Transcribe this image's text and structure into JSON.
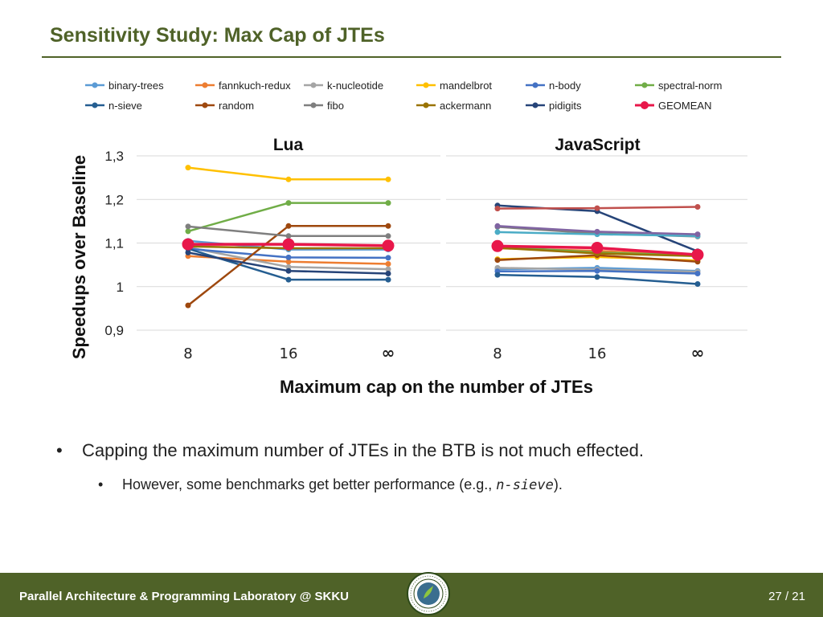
{
  "slide": {
    "title": "Sensitivity Study: Max Cap of JTEs",
    "bullet1": "Capping the maximum number of JTEs in the BTB is not much effected.",
    "bullet2_prefix": "However, some benchmarks get better performance (e.g., ",
    "bullet2_code": "n-sieve",
    "bullet2_suffix": ").",
    "footer": "Parallel Architecture & Programming Laboratory  @ SKKU",
    "page": "27 / 21"
  },
  "chart_data": {
    "type": "line",
    "ylabel": "Speedups  over Baseline",
    "xlabel": "Maximum cap on the number of JTEs",
    "ylim": [
      0.9,
      1.3
    ],
    "yticks": [
      "1,3",
      "1,2",
      "1,1",
      "1",
      "0,9"
    ],
    "ytick_values": [
      1.3,
      1.2,
      1.1,
      1.0,
      0.9
    ],
    "categories": [
      "8",
      "16",
      "∞"
    ],
    "grid": true,
    "legend_position": "top",
    "legend": [
      {
        "name": "binary-trees",
        "color": "#5b9bd5"
      },
      {
        "name": "fannkuch-redux",
        "color": "#ed7d31"
      },
      {
        "name": "k-nucleotide",
        "color": "#a5a5a5"
      },
      {
        "name": "mandelbrot",
        "color": "#ffc000"
      },
      {
        "name": "n-body",
        "color": "#4472c4"
      },
      {
        "name": "spectral-norm",
        "color": "#70ad47"
      },
      {
        "name": "n-sieve",
        "color": "#255e91"
      },
      {
        "name": "random",
        "color": "#9e480e"
      },
      {
        "name": "fibo",
        "color": "#7f7f7f"
      },
      {
        "name": "ackermann",
        "color": "#997300"
      },
      {
        "name": "pidigits",
        "color": "#264478"
      },
      {
        "name": "GEOMEAN",
        "color": "#e8174a"
      }
    ],
    "panels": [
      {
        "title": "Lua",
        "series": [
          {
            "name": "binary-trees",
            "color": "#5b9bd5",
            "values": [
              1.105,
              1.085,
              1.085
            ]
          },
          {
            "name": "fannkuch-redux",
            "color": "#ed7d31",
            "values": [
              1.07,
              1.057,
              1.052
            ]
          },
          {
            "name": "k-nucleotide",
            "color": "#a5a5a5",
            "values": [
              1.09,
              1.045,
              1.04
            ]
          },
          {
            "name": "mandelbrot",
            "color": "#ffc000",
            "values": [
              1.273,
              1.246,
              1.246
            ]
          },
          {
            "name": "n-body",
            "color": "#4472c4",
            "values": [
              1.087,
              1.067,
              1.066
            ]
          },
          {
            "name": "spectral-norm",
            "color": "#70ad47",
            "values": [
              1.127,
              1.192,
              1.192
            ]
          },
          {
            "name": "n-sieve",
            "color": "#255e91",
            "values": [
              1.087,
              1.016,
              1.016
            ]
          },
          {
            "name": "random",
            "color": "#9e480e",
            "values": [
              0.957,
              1.139,
              1.139
            ]
          },
          {
            "name": "fibo",
            "color": "#7f7f7f",
            "values": [
              1.138,
              1.116,
              1.116
            ]
          },
          {
            "name": "ackermann",
            "color": "#997300",
            "values": [
              1.092,
              1.088,
              1.088
            ]
          },
          {
            "name": "pidigits",
            "color": "#264478",
            "values": [
              1.078,
              1.036,
              1.03
            ]
          },
          {
            "name": "GEOMEAN",
            "color": "#e8174a",
            "values": [
              1.097,
              1.097,
              1.094
            ]
          }
        ]
      },
      {
        "title": "JavaScript",
        "series": [
          {
            "name": "binary-trees",
            "color": "#5b9bd5",
            "values": [
              1.04,
              1.043,
              1.036
            ]
          },
          {
            "name": "fannkuch-redux",
            "color": "#ed7d31",
            "values": [
              1.088,
              1.082,
              1.072
            ]
          },
          {
            "name": "k-nucleotide",
            "color": "#a5a5a5",
            "values": [
              1.043,
              1.039,
              1.034
            ]
          },
          {
            "name": "mandelbrot",
            "color": "#ffc000",
            "values": [
              1.063,
              1.068,
              1.06
            ]
          },
          {
            "name": "n-body",
            "color": "#4472c4",
            "values": [
              1.035,
              1.036,
              1.03
            ]
          },
          {
            "name": "spectral-norm",
            "color": "#70ad47",
            "values": [
              1.092,
              1.078,
              1.072
            ]
          },
          {
            "name": "n-sieve",
            "color": "#255e91",
            "values": [
              1.027,
              1.022,
              1.006
            ]
          },
          {
            "name": "random",
            "color": "#9e480e",
            "values": [
              1.061,
              1.072,
              1.057
            ]
          },
          {
            "name": "fibo",
            "color": "#7f7f7f",
            "values": [
              1.137,
              1.122,
              1.115
            ]
          },
          {
            "name": "ackermann",
            "color": "#997300",
            "values": [
              1.089,
              1.076,
              1.07
            ]
          },
          {
            "name": "pidigits",
            "color": "#264478",
            "values": [
              1.186,
              1.173,
              1.081
            ]
          },
          {
            "name": "GEOMEAN",
            "color": "#e8174a",
            "values": [
              1.093,
              1.089,
              1.073
            ]
          },
          {
            "name": "",
            "color": "#4bacc6",
            "values": [
              1.125,
              1.12,
              1.116
            ]
          },
          {
            "name": "",
            "color": "#c0504d",
            "values": [
              1.179,
              1.18,
              1.183
            ]
          },
          {
            "name": "",
            "color": "#8064a2",
            "values": [
              1.139,
              1.126,
              1.12
            ]
          }
        ]
      }
    ]
  }
}
